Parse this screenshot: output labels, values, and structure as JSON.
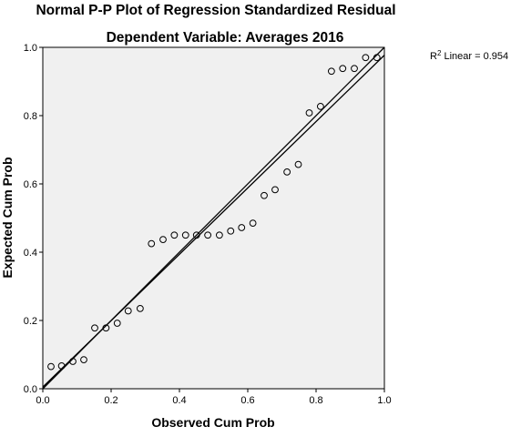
{
  "chart_data": {
    "type": "scatter",
    "title": "Normal P-P Plot of Regression Standardized Residual",
    "subtitle": "Dependent Variable: Averages 2016",
    "xlabel": "Observed Cum Prob",
    "ylabel": "Expected Cum Prob",
    "xlim": [
      0,
      1
    ],
    "ylim": [
      0,
      1
    ],
    "xticks": [
      "0.0",
      "0.2",
      "0.4",
      "0.6",
      "0.8",
      "1.0"
    ],
    "yticks": [
      "0.0",
      "0.2",
      "0.4",
      "0.6",
      "0.8",
      "1.0"
    ],
    "grid": false,
    "background_color": "#f0f0f0",
    "point_color": "#000000",
    "annotation": {
      "r2_prefix": "R",
      "r2_superscript": "2",
      "r2_text": " Linear = 0.954"
    },
    "reference_line": {
      "x": [
        0,
        1
      ],
      "y": [
        0,
        1
      ]
    },
    "fit_line": {
      "x": [
        0,
        1
      ],
      "y": [
        0.005,
        0.977
      ]
    },
    "points": [
      {
        "x": 0.024,
        "y": 0.065
      },
      {
        "x": 0.055,
        "y": 0.067
      },
      {
        "x": 0.088,
        "y": 0.08
      },
      {
        "x": 0.12,
        "y": 0.085
      },
      {
        "x": 0.152,
        "y": 0.178
      },
      {
        "x": 0.185,
        "y": 0.178
      },
      {
        "x": 0.218,
        "y": 0.192
      },
      {
        "x": 0.25,
        "y": 0.228
      },
      {
        "x": 0.285,
        "y": 0.235
      },
      {
        "x": 0.318,
        "y": 0.425
      },
      {
        "x": 0.352,
        "y": 0.437
      },
      {
        "x": 0.385,
        "y": 0.45
      },
      {
        "x": 0.418,
        "y": 0.45
      },
      {
        "x": 0.45,
        "y": 0.45
      },
      {
        "x": 0.483,
        "y": 0.45
      },
      {
        "x": 0.517,
        "y": 0.45
      },
      {
        "x": 0.55,
        "y": 0.462
      },
      {
        "x": 0.582,
        "y": 0.472
      },
      {
        "x": 0.615,
        "y": 0.485
      },
      {
        "x": 0.648,
        "y": 0.566
      },
      {
        "x": 0.68,
        "y": 0.583
      },
      {
        "x": 0.715,
        "y": 0.635
      },
      {
        "x": 0.748,
        "y": 0.657
      },
      {
        "x": 0.78,
        "y": 0.808
      },
      {
        "x": 0.813,
        "y": 0.827
      },
      {
        "x": 0.845,
        "y": 0.93
      },
      {
        "x": 0.878,
        "y": 0.938
      },
      {
        "x": 0.912,
        "y": 0.938
      },
      {
        "x": 0.945,
        "y": 0.97
      },
      {
        "x": 0.978,
        "y": 0.97
      }
    ]
  }
}
